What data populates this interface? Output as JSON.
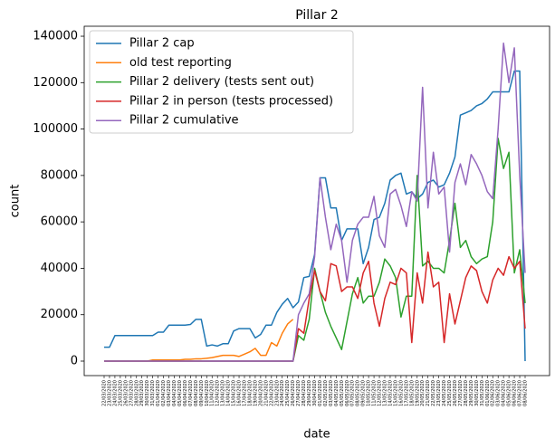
{
  "chart_data": {
    "type": "line",
    "title": "Pillar 2",
    "x_label": "date",
    "y_label": "count",
    "categories": [
      "22/03/2020",
      "23/03/2020",
      "24/03/2020",
      "25/03/2020",
      "26/03/2020",
      "27/03/2020",
      "28/03/2020",
      "29/03/2020",
      "30/03/2020",
      "31/03/2020",
      "01/04/2020",
      "02/04/2020",
      "03/04/2020",
      "04/04/2020",
      "05/04/2020",
      "06/04/2020",
      "07/04/2020",
      "08/04/2020",
      "09/04/2020",
      "10/04/2020",
      "11/04/2020",
      "12/04/2020",
      "13/04/2020",
      "14/04/2020",
      "15/04/2020",
      "16/04/2020",
      "17/04/2020",
      "18/04/2020",
      "19/04/2020",
      "20/04/2020",
      "21/04/2020",
      "22/04/2020",
      "23/04/2020",
      "24/04/2020",
      "25/04/2020",
      "26/04/2020",
      "27/04/2020",
      "28/04/2020",
      "29/04/2020",
      "30/04/2020",
      "01/05/2020",
      "02/05/2020",
      "03/05/2020",
      "04/05/2020",
      "05/05/2020",
      "06/05/2020",
      "07/05/2020",
      "08/05/2020",
      "09/05/2020",
      "10/05/2020",
      "11/05/2020",
      "12/05/2020",
      "13/05/2020",
      "14/05/2020",
      "15/05/2020",
      "16/05/2020",
      "17/05/2020",
      "18/05/2020",
      "19/05/2020",
      "20/05/2020",
      "21/05/2020",
      "22/05/2020",
      "23/05/2020",
      "24/05/2020",
      "25/05/2020",
      "26/05/2020",
      "27/05/2020",
      "28/05/2020",
      "29/05/2020",
      "30/05/2020",
      "31/05/2020",
      "01/06/2020",
      "02/06/2020",
      "03/06/2020",
      "04/06/2020",
      "05/06/2020",
      "06/06/2020",
      "07/06/2020",
      "08/06/2020"
    ],
    "series": [
      {
        "name": "Pillar 2 cap",
        "color": "#1f77b4",
        "values": [
          6000,
          6000,
          11000,
          11000,
          11000,
          11000,
          11000,
          11000,
          11000,
          11000,
          12500,
          12500,
          15500,
          15500,
          15500,
          15500,
          15800,
          18000,
          18000,
          6500,
          7000,
          6500,
          7500,
          7500,
          13000,
          14000,
          14000,
          14000,
          10000,
          11500,
          15500,
          15500,
          21000,
          24500,
          27000,
          23000,
          25500,
          36000,
          36500,
          46000,
          79000,
          79000,
          66000,
          66000,
          52000,
          57000,
          57000,
          57000,
          42000,
          49000,
          61000,
          62000,
          68000,
          78000,
          80000,
          81000,
          72000,
          73000,
          70000,
          72000,
          77000,
          78000,
          75000,
          76000,
          81000,
          88000,
          106000,
          107000,
          108000,
          110000,
          111000,
          113000,
          116000,
          116000,
          116000,
          116000,
          125000,
          125000,
          0
        ]
      },
      {
        "name": "old test reporting",
        "color": "#ff7f0e",
        "values": [
          0,
          0,
          0,
          0,
          0,
          0,
          0,
          0,
          0,
          500,
          500,
          500,
          500,
          500,
          500,
          800,
          800,
          1000,
          1000,
          1200,
          1500,
          2000,
          2500,
          2500,
          2500,
          2000,
          3000,
          4000,
          5500,
          2500,
          2500,
          8000,
          6500,
          12000,
          16000,
          18000,
          null,
          null,
          null,
          null,
          null,
          null,
          null,
          null,
          null,
          null,
          null,
          null,
          null,
          null,
          null,
          null,
          null,
          null,
          null,
          null,
          null,
          null,
          null,
          null,
          null,
          null,
          null,
          null,
          null,
          null,
          null,
          null,
          null,
          null,
          null,
          null,
          null,
          null,
          null,
          null,
          null,
          null,
          null
        ]
      },
      {
        "name": "Pillar 2 delivery (tests sent out)",
        "color": "#2ca02c",
        "values": [
          0,
          0,
          0,
          0,
          0,
          0,
          0,
          0,
          0,
          0,
          0,
          0,
          0,
          0,
          0,
          0,
          0,
          0,
          0,
          0,
          0,
          0,
          0,
          0,
          0,
          0,
          0,
          0,
          0,
          0,
          0,
          0,
          0,
          0,
          0,
          0,
          11000,
          9000,
          18000,
          40000,
          30000,
          21000,
          15000,
          10000,
          5000,
          17000,
          29000,
          36000,
          25000,
          28000,
          28000,
          34000,
          44000,
          41000,
          36000,
          19000,
          28000,
          28000,
          80000,
          41000,
          43000,
          40000,
          40000,
          38000,
          52000,
          68000,
          49000,
          52000,
          45000,
          42000,
          44000,
          45000,
          60000,
          96000,
          83000,
          90000,
          38000,
          48000,
          25000
        ]
      },
      {
        "name": "Pillar 2 in person (tests processed)",
        "color": "#d62728",
        "values": [
          0,
          0,
          0,
          0,
          0,
          0,
          0,
          0,
          0,
          0,
          0,
          0,
          0,
          0,
          0,
          0,
          0,
          0,
          0,
          0,
          0,
          0,
          0,
          0,
          0,
          0,
          0,
          0,
          0,
          0,
          0,
          0,
          0,
          0,
          0,
          0,
          14000,
          12000,
          27000,
          39000,
          30000,
          26000,
          42000,
          41000,
          30000,
          32000,
          32000,
          27000,
          38000,
          43000,
          25000,
          15000,
          27000,
          34000,
          33000,
          40000,
          38000,
          8000,
          38000,
          25000,
          47000,
          32000,
          34000,
          8000,
          29000,
          16000,
          26000,
          36000,
          41000,
          39000,
          30000,
          25000,
          35000,
          40000,
          37000,
          45000,
          40000,
          43000,
          14000
        ]
      },
      {
        "name": "Pillar 2 cumulative",
        "color": "#9467bd",
        "values": [
          0,
          0,
          0,
          0,
          0,
          0,
          0,
          0,
          0,
          0,
          0,
          0,
          0,
          0,
          0,
          0,
          0,
          0,
          0,
          0,
          0,
          0,
          0,
          0,
          0,
          0,
          0,
          0,
          0,
          0,
          0,
          0,
          0,
          0,
          0,
          0,
          20000,
          25000,
          29000,
          45000,
          79000,
          62000,
          48000,
          59000,
          52000,
          34000,
          52000,
          59000,
          62000,
          62000,
          71000,
          54000,
          49000,
          72000,
          74000,
          67000,
          58000,
          73000,
          69000,
          118000,
          66000,
          90000,
          72000,
          75000,
          47000,
          77000,
          85000,
          76000,
          89000,
          85000,
          80000,
          73000,
          70000,
          100000,
          137000,
          120000,
          135000,
          80000,
          38000
        ]
      }
    ],
    "ylim": [
      -6240,
      144300
    ],
    "yticks": [
      0,
      20000,
      40000,
      60000,
      80000,
      100000,
      120000,
      140000
    ],
    "legend": "upper left",
    "grid": false
  }
}
